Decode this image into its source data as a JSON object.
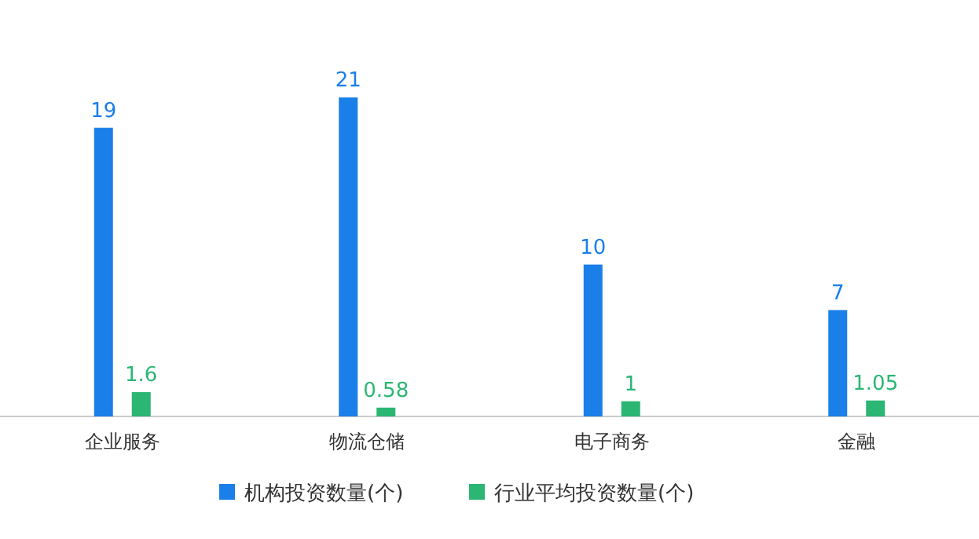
{
  "chart_data": {
    "type": "bar",
    "categories": [
      "企业服务",
      "物流仓储",
      "电子商务",
      "金融"
    ],
    "series": [
      {
        "name": "机构投资数量(个)",
        "color": "#1a7fe8",
        "values": [
          19,
          21,
          10,
          7
        ]
      },
      {
        "name": "行业平均投资数量(个)",
        "color": "#2bb673",
        "values": [
          1.6,
          0.58,
          1,
          1.05
        ]
      }
    ],
    "data_labels": true,
    "legend": "bottom"
  }
}
